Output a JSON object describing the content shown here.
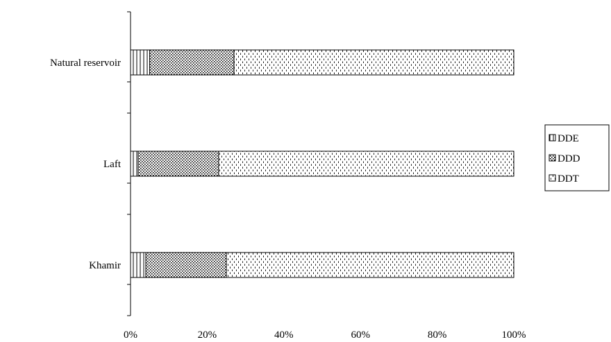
{
  "chart_data": {
    "type": "bar",
    "orientation": "horizontal",
    "stacked": "percent",
    "categories": [
      "Natural reservoir",
      "Laft",
      "Khamir"
    ],
    "series": [
      {
        "name": "DDE",
        "values": [
          5,
          2,
          4
        ],
        "pattern": "vertical-lines"
      },
      {
        "name": "DDD",
        "values": [
          22,
          21,
          21
        ],
        "pattern": "dots"
      },
      {
        "name": "DDT",
        "values": [
          73,
          77,
          75
        ],
        "pattern": "dashes"
      }
    ],
    "x_ticks": [
      "0%",
      "20%",
      "40%",
      "60%",
      "80%",
      "100%"
    ],
    "xlim": [
      0,
      100
    ],
    "legend_position": "right",
    "grid": false
  }
}
